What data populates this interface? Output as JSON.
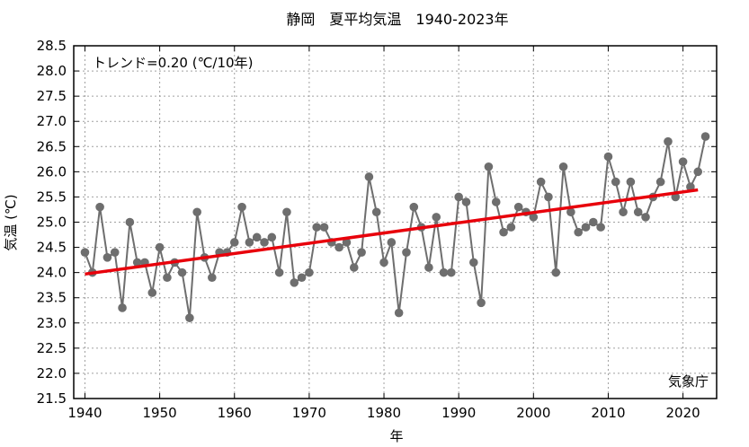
{
  "chart_data": {
    "type": "line",
    "title": "静岡　夏平均気温　1940-2023年",
    "xlabel": "年",
    "ylabel": "気温 (℃)",
    "xlim": [
      1938.5,
      2024.5
    ],
    "ylim": [
      21.5,
      28.5
    ],
    "x_ticks": [
      1940,
      1950,
      1960,
      1970,
      1980,
      1990,
      2000,
      2010,
      2020
    ],
    "y_ticks": [
      21.5,
      22.0,
      22.5,
      23.0,
      23.5,
      24.0,
      24.5,
      25.0,
      25.5,
      26.0,
      26.5,
      27.0,
      27.5,
      28.0,
      28.5
    ],
    "grid": true,
    "annotation_trend": "トレンド=0.20 (℃/10年)",
    "source_label": "気象庁",
    "colors": {
      "series": "#6e6e6e",
      "trend": "#e8000b"
    },
    "x": [
      1940,
      1941,
      1942,
      1943,
      1944,
      1945,
      1946,
      1947,
      1948,
      1949,
      1950,
      1951,
      1952,
      1953,
      1954,
      1955,
      1956,
      1957,
      1958,
      1959,
      1960,
      1961,
      1962,
      1963,
      1964,
      1965,
      1966,
      1967,
      1968,
      1969,
      1970,
      1971,
      1972,
      1973,
      1974,
      1975,
      1976,
      1977,
      1978,
      1979,
      1980,
      1981,
      1982,
      1983,
      1984,
      1985,
      1986,
      1987,
      1988,
      1989,
      1990,
      1991,
      1992,
      1993,
      1994,
      1995,
      1996,
      1997,
      1998,
      1999,
      2000,
      2001,
      2002,
      2003,
      2004,
      2005,
      2006,
      2007,
      2008,
      2009,
      2010,
      2011,
      2012,
      2013,
      2014,
      2015,
      2016,
      2017,
      2018,
      2019,
      2020,
      2021,
      2022,
      2023
    ],
    "values": [
      24.4,
      24.0,
      25.3,
      24.3,
      24.4,
      23.3,
      25.0,
      24.2,
      24.2,
      23.6,
      24.5,
      23.9,
      24.2,
      24.0,
      23.1,
      25.2,
      24.3,
      23.9,
      24.4,
      24.4,
      24.6,
      25.3,
      24.6,
      24.7,
      24.6,
      24.7,
      24.0,
      25.2,
      23.8,
      23.9,
      24.0,
      24.9,
      24.9,
      24.6,
      24.5,
      24.6,
      24.1,
      24.4,
      25.9,
      25.2,
      24.2,
      24.6,
      23.2,
      24.4,
      25.3,
      24.9,
      24.1,
      25.1,
      24.0,
      24.0,
      25.5,
      25.4,
      24.2,
      23.4,
      26.1,
      25.4,
      24.8,
      24.9,
      25.3,
      25.2,
      25.1,
      25.8,
      25.5,
      24.0,
      26.1,
      25.2,
      24.8,
      24.9,
      25.0,
      24.9,
      26.3,
      25.8,
      25.2,
      25.8,
      25.2,
      25.1,
      25.5,
      25.8,
      26.6,
      25.5,
      26.2,
      25.7,
      26.0,
      26.7
    ],
    "trend_line": {
      "x": [
        1940,
        2022
      ],
      "y": [
        23.97,
        25.64
      ]
    }
  }
}
